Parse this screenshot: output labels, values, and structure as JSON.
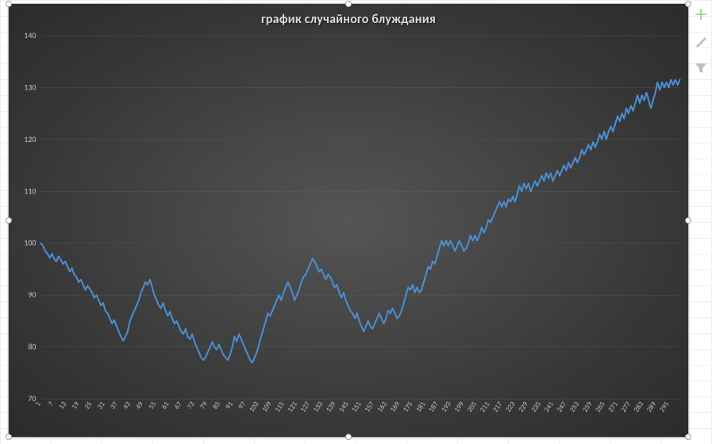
{
  "chart": {
    "type": "line",
    "title": "график случайного блуждания",
    "title_fontsize": 16,
    "title_color": "#dcdcdc",
    "background_gradient": {
      "center": "#555555",
      "edge": "#2b2b2b"
    },
    "grid_color": "#6a6a6a",
    "axis_label_color": "#c4c4c4",
    "axis_label_fontsize": 10,
    "line_color": "#4a8fd4",
    "line_width": 2,
    "ylim": [
      70,
      140
    ],
    "ytick_step": 10,
    "yticks": [
      70,
      80,
      90,
      100,
      110,
      120,
      130,
      140
    ],
    "xlim": [
      1,
      300
    ],
    "xtick_step": 6,
    "xticks": [
      1,
      7,
      13,
      19,
      25,
      31,
      37,
      43,
      49,
      55,
      61,
      67,
      73,
      79,
      85,
      91,
      97,
      103,
      109,
      115,
      121,
      127,
      133,
      139,
      145,
      151,
      157,
      163,
      169,
      175,
      181,
      187,
      193,
      199,
      205,
      211,
      217,
      223,
      229,
      235,
      241,
      247,
      253,
      259,
      265,
      271,
      277,
      283,
      289,
      295
    ],
    "values": [
      100,
      99.5,
      98.5,
      98,
      97.2,
      98,
      97,
      96.5,
      97.5,
      96.8,
      96,
      96.5,
      95.5,
      94.5,
      95.2,
      94,
      93.5,
      92.5,
      93,
      92,
      91,
      91.8,
      91.2,
      90.5,
      89.5,
      90,
      89,
      88,
      88.5,
      87,
      86.5,
      85.5,
      84.5,
      85.2,
      84,
      83,
      82,
      81.2,
      82,
      83,
      85,
      86,
      87,
      88,
      89,
      90.5,
      91.5,
      92.5,
      92,
      93,
      91.5,
      90,
      89,
      88,
      87.5,
      88.5,
      87,
      86,
      86.8,
      85.5,
      84.5,
      85,
      84,
      83,
      82.5,
      83.5,
      82,
      81.5,
      82.5,
      81,
      80,
      79,
      78,
      77.5,
      78,
      79,
      80,
      81,
      80,
      79.5,
      80.5,
      79.5,
      78.5,
      78,
      77.5,
      78.5,
      80,
      82,
      81,
      82.5,
      81.5,
      80.5,
      79.5,
      78.5,
      77.5,
      77,
      78,
      79,
      80.5,
      82,
      83.5,
      85,
      86.5,
      86,
      87,
      88,
      89,
      90,
      89,
      90.5,
      91.5,
      92.5,
      91.5,
      90.5,
      89,
      90,
      91,
      92.5,
      93.5,
      94,
      95,
      96,
      97,
      96.5,
      95.5,
      94.5,
      95,
      94,
      93,
      94,
      93.5,
      92.5,
      91.5,
      92,
      90.5,
      89.5,
      90.5,
      89,
      88,
      87,
      86.5,
      85.5,
      86.5,
      85,
      84,
      83,
      84,
      85,
      84,
      83.5,
      84.5,
      85.5,
      86.5,
      85.5,
      84.5,
      85.5,
      87,
      86.5,
      87.5,
      86.5,
      85.5,
      86,
      87,
      88.5,
      90,
      91.5,
      91,
      92,
      90.5,
      91.5,
      90.5,
      91,
      92.5,
      94,
      95.5,
      95,
      96.5,
      96,
      97.5,
      99,
      100.5,
      99.5,
      100.5,
      99.5,
      100.5,
      99.5,
      98.5,
      99.5,
      100.5,
      99.5,
      98.5,
      99,
      100,
      101.5,
      100.5,
      101.5,
      100.5,
      101.5,
      103,
      102,
      103,
      104.5,
      104,
      105,
      106,
      107,
      108,
      107,
      108,
      107,
      108.5,
      108,
      109,
      108,
      109.5,
      111,
      110,
      111.5,
      110.5,
      111.5,
      110,
      111,
      112,
      111,
      112,
      113,
      112,
      113.5,
      112.5,
      113.5,
      112,
      113,
      114,
      113,
      114,
      115,
      114,
      115.5,
      114.5,
      115.5,
      116.5,
      115.5,
      116.5,
      118,
      117,
      118,
      119,
      118,
      119.5,
      118.5,
      119.5,
      121,
      120,
      121.5,
      120,
      121.5,
      122.5,
      121.5,
      123,
      124.5,
      123.5,
      125,
      124,
      126,
      125,
      126.5,
      125.5,
      127,
      128.5,
      127,
      128.5,
      127.5,
      129,
      127.5,
      126,
      127.5,
      129,
      131,
      129.5,
      131,
      130,
      131,
      130,
      131.5,
      130.5,
      131.5,
      130.5,
      131.5
    ]
  },
  "side_tools": {
    "plus": "Chart Elements",
    "brush": "Chart Styles",
    "filter": "Chart Filters"
  }
}
